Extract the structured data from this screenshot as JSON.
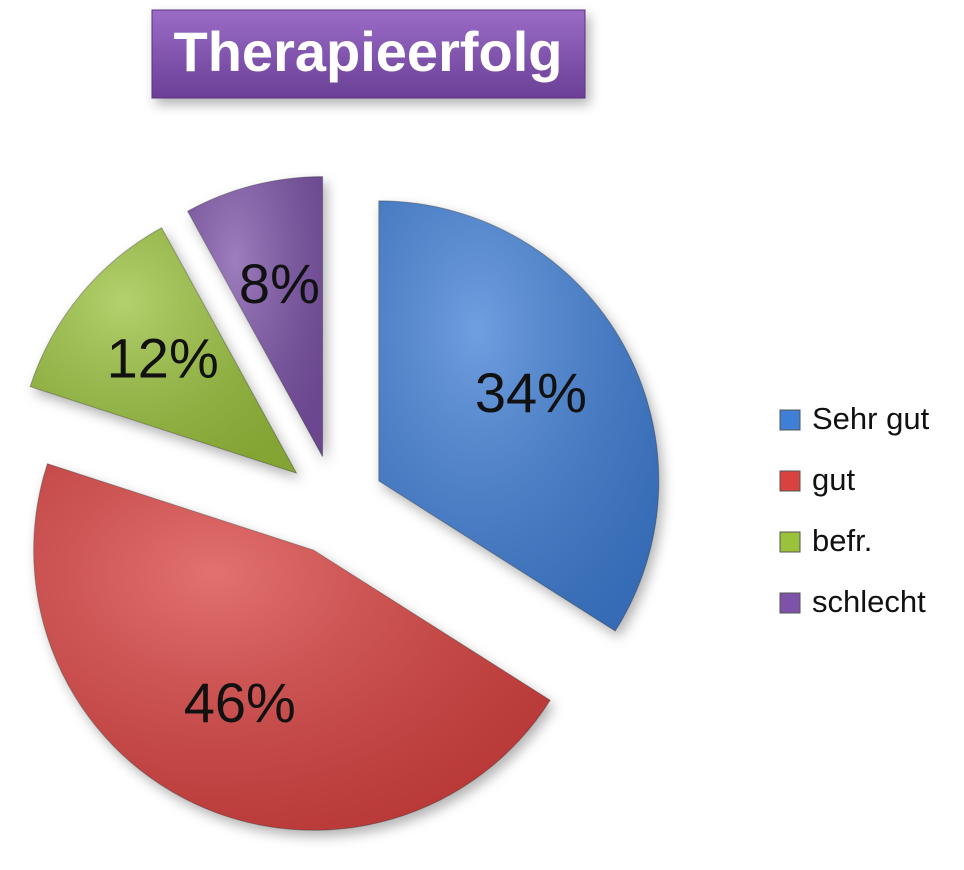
{
  "chart_data": {
    "type": "pie",
    "title": "Therapieerfolg",
    "categories": [
      "Sehr gut",
      "gut",
      "befr.",
      "schlecht"
    ],
    "values": [
      34,
      46,
      12,
      8
    ],
    "value_labels": [
      "34%",
      "46%",
      "12%",
      "8%"
    ],
    "colors": [
      "#3f7fd6",
      "#d9423f",
      "#9bc23c",
      "#7d52a8"
    ],
    "legend": "right"
  }
}
